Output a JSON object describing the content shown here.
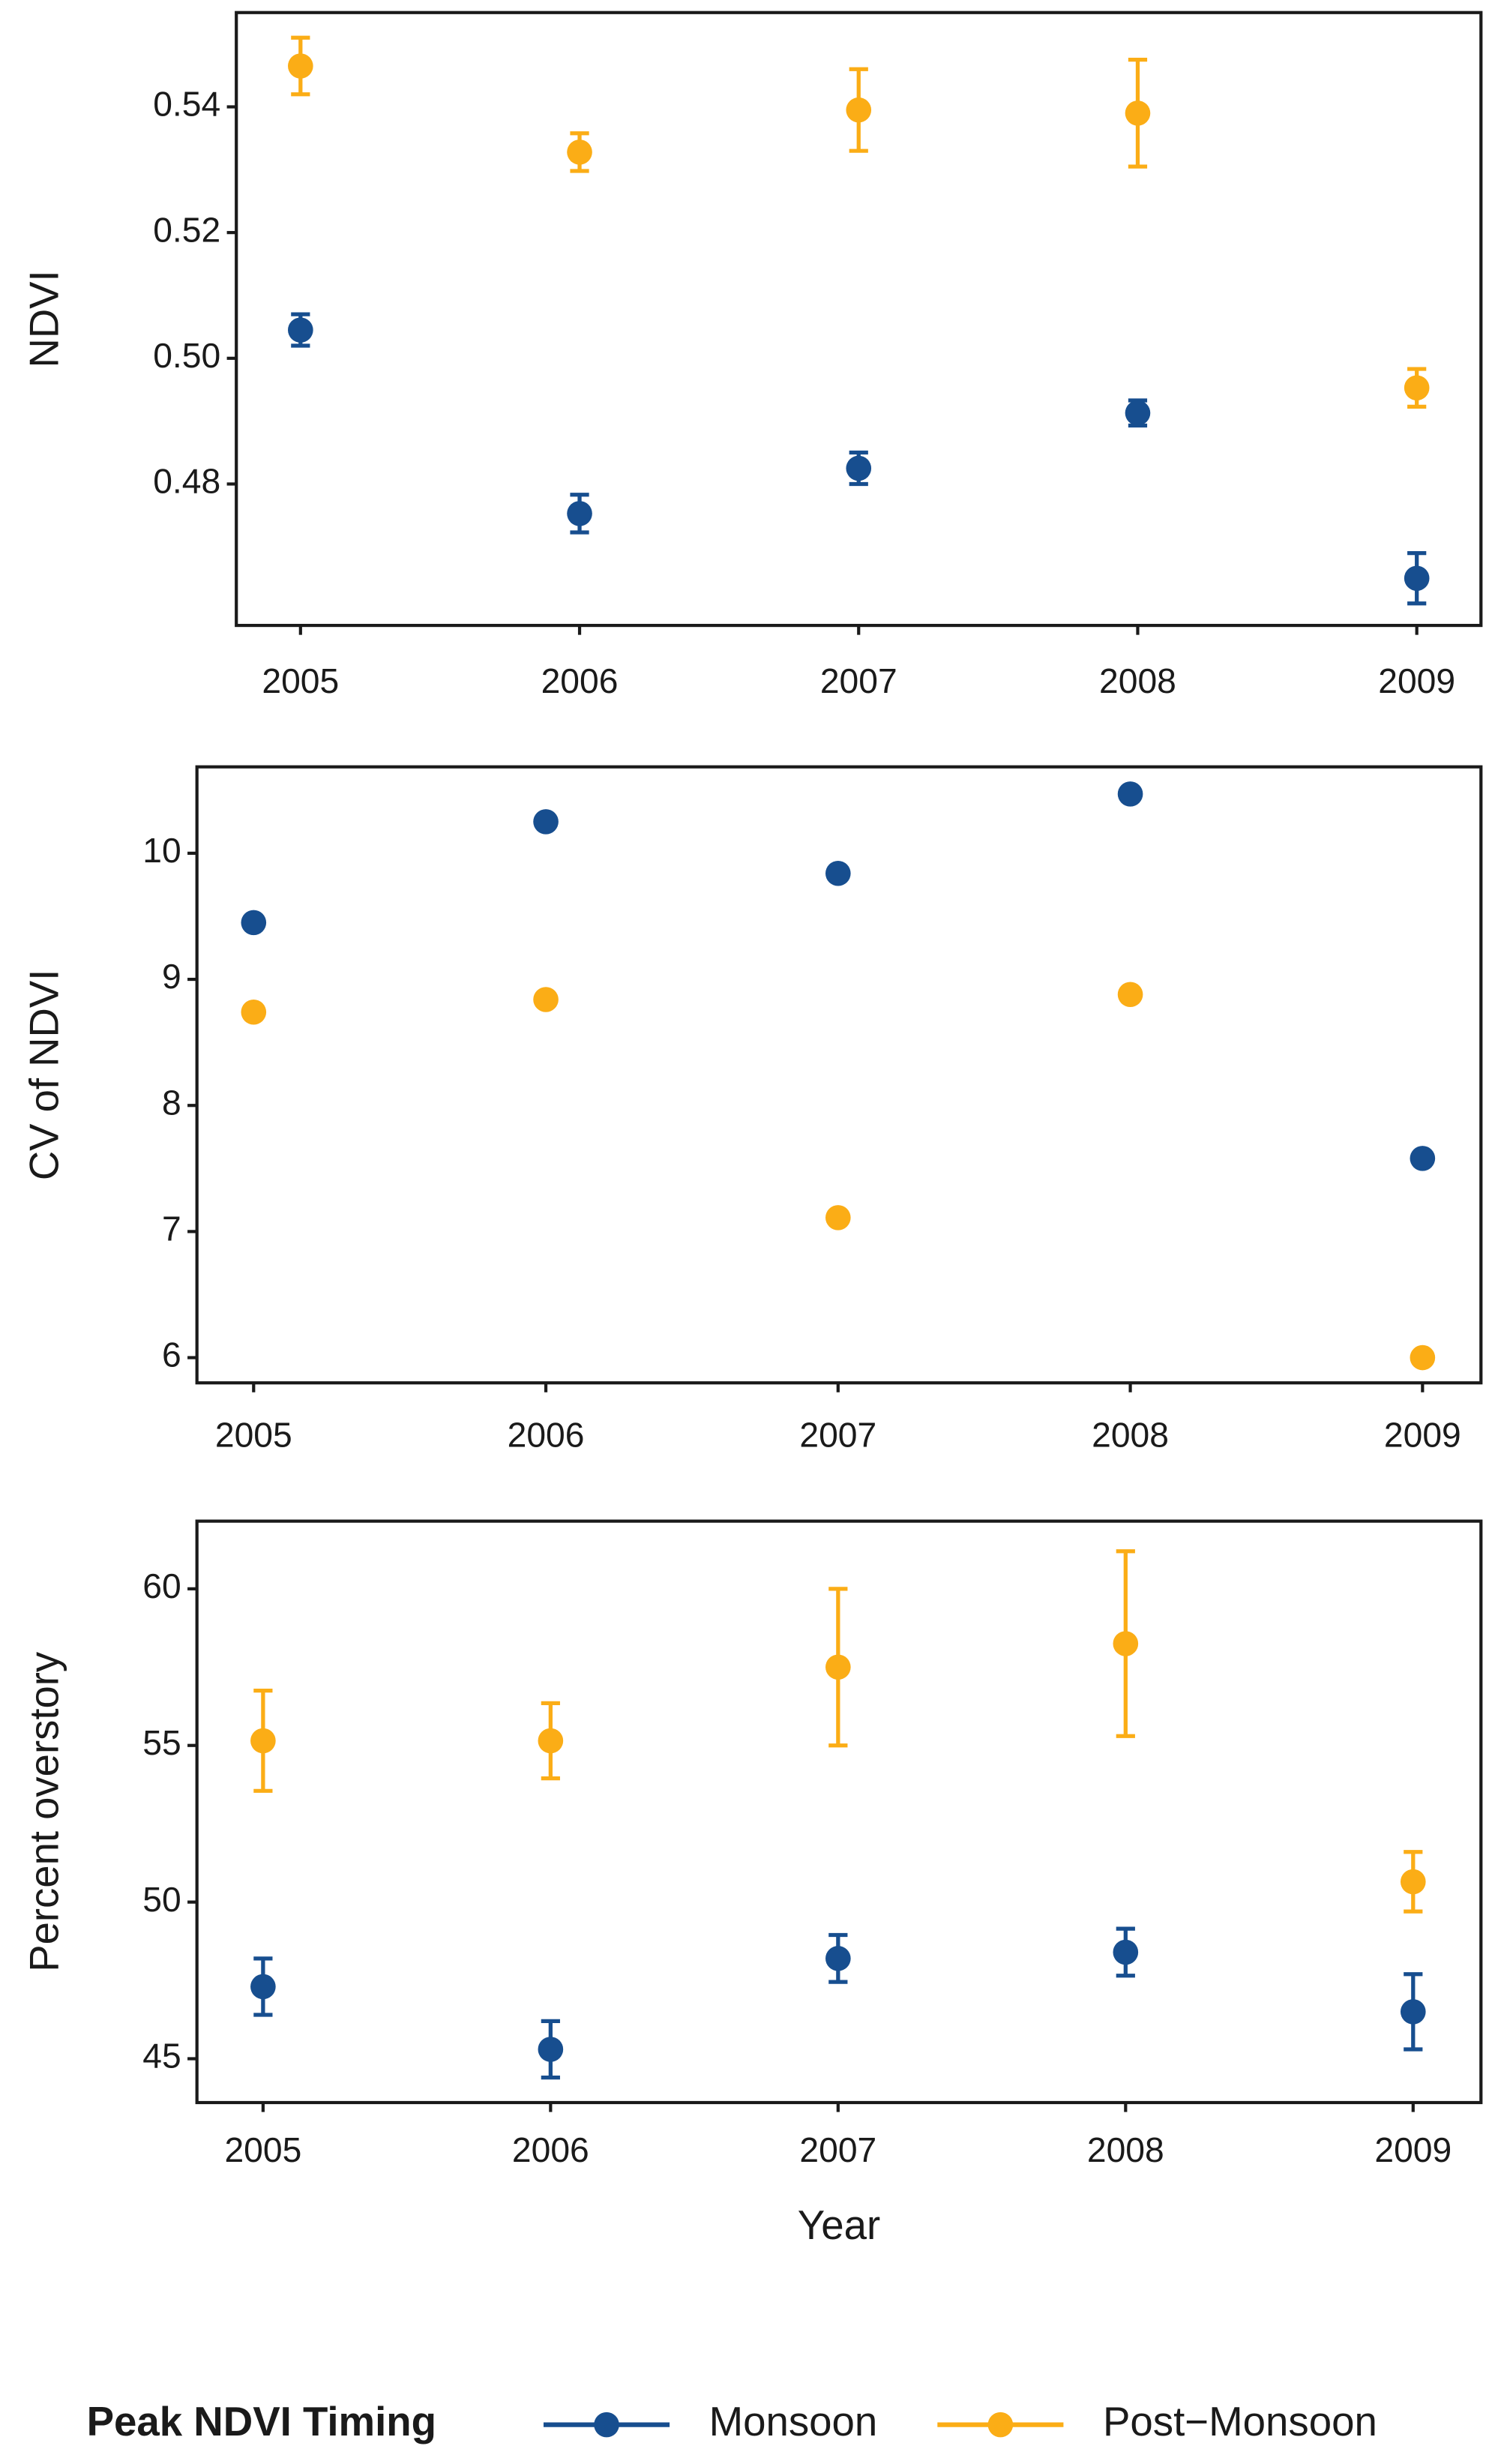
{
  "chart_data": [
    {
      "type": "scatter",
      "y_label": "NDVI",
      "x": [
        2005,
        2006,
        2007,
        2008,
        2009
      ],
      "xlim": [
        2004.77,
        2009.23
      ],
      "xticks": [
        2005,
        2006,
        2007,
        2008,
        2009
      ],
      "ylim": [
        0.4575,
        0.555
      ],
      "yticks": [
        0.48,
        {
          "value": 0.5,
          "label": "0.50"
        },
        0.52,
        0.54
      ],
      "series": [
        {
          "color": "#174e8f",
          "values": [
            0.5045,
            0.4753,
            0.4825,
            0.4913,
            0.465
          ],
          "errors": [
            0.0025,
            0.003,
            0.0025,
            0.002,
            0.004
          ]
        },
        {
          "color": "#fbad16",
          "values": [
            0.5465,
            0.5328,
            0.5395,
            0.539,
            0.4953
          ],
          "errors": [
            0.0045,
            0.003,
            0.0065,
            0.0085,
            0.003
          ]
        }
      ]
    },
    {
      "type": "scatter",
      "y_label": "CV of NDVI",
      "x": [
        2005,
        2006,
        2007,
        2008,
        2009
      ],
      "xlim": [
        2004.806,
        2009.2
      ],
      "xticks": [
        2005,
        2006,
        2007,
        2008,
        2009
      ],
      "ylim": [
        5.8,
        10.685
      ],
      "yticks": [
        6,
        7,
        8,
        9,
        10
      ],
      "series": [
        {
          "color": "#174e8f",
          "values": [
            9.45,
            10.25,
            9.84,
            10.47,
            7.58
          ]
        },
        {
          "color": "#fbad16",
          "values": [
            8.74,
            8.84,
            7.11,
            8.88,
            6.0
          ]
        }
      ]
    },
    {
      "type": "scatter",
      "y_label": "Percent overstory",
      "x_label": "Year",
      "legend_title": "Peak NDVI Timing",
      "x": [
        2005,
        2006,
        2007,
        2008,
        2009
      ],
      "xlim": [
        2004.77,
        2009.236
      ],
      "xticks": [
        2005,
        2006,
        2007,
        2008,
        2009
      ],
      "ylim": [
        43.6,
        62.16
      ],
      "yticks": [
        45,
        50,
        55,
        60
      ],
      "series": [
        {
          "name": "Monsoon",
          "color": "#174e8f",
          "values": [
            47.3,
            45.3,
            48.2,
            48.4,
            46.5
          ],
          "errors": [
            0.9,
            0.9,
            0.75,
            0.75,
            1.2
          ]
        },
        {
          "name": "Post−Monsoon",
          "color": "#fbad16",
          "values": [
            55.15,
            55.15,
            57.5,
            58.25,
            50.65
          ],
          "errors": [
            1.6,
            1.2,
            2.5,
            2.95,
            0.95
          ]
        }
      ]
    }
  ]
}
